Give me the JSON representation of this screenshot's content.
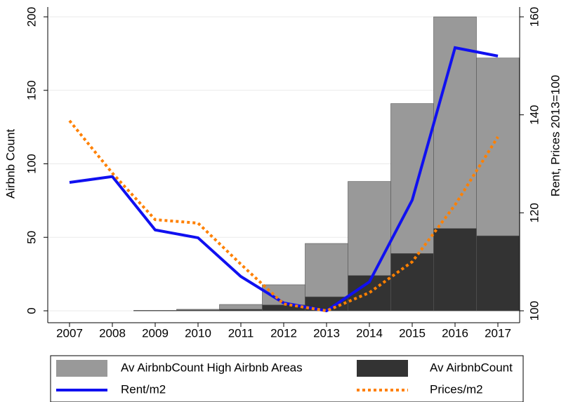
{
  "chart_data": {
    "type": "combo",
    "categories": [
      "2007",
      "2008",
      "2009",
      "2010",
      "2011",
      "2012",
      "2013",
      "2014",
      "2015",
      "2016",
      "2017"
    ],
    "ylabel": "Airbnb Count",
    "y2label": "Rent, Prices 2013=100",
    "ylim": [
      0,
      200
    ],
    "yticks": [
      0,
      50,
      100,
      150,
      200
    ],
    "y2lim": [
      100,
      160
    ],
    "y2ticks": [
      100,
      120,
      140,
      160
    ],
    "grid": true,
    "legend": "bottom",
    "series": [
      {
        "name": "Av AirbnbCount High Airbnb Areas",
        "kind": "bar",
        "color": "#999999",
        "values": [
          null,
          null,
          0.3,
          1,
          4.3,
          17.7,
          45.8,
          88,
          141,
          200,
          172
        ]
      },
      {
        "name": "Av AirbnbCount",
        "kind": "bar",
        "color": "#333333",
        "values": [
          null,
          null,
          0.2,
          0.5,
          1,
          4,
          9.5,
          24,
          39,
          56,
          51
        ]
      },
      {
        "name": "Rent/m2",
        "kind": "line",
        "axis": "y2",
        "color": "#1010f0",
        "dash": "solid",
        "values": [
          126.2,
          127.4,
          116.5,
          114.9,
          107,
          101.6,
          100,
          105.9,
          122.6,
          153.7,
          152
        ]
      },
      {
        "name": "Prices/m2",
        "kind": "line",
        "axis": "y2",
        "color": "#ff8000",
        "dash": "dotted",
        "values": [
          138.8,
          128.1,
          118.6,
          117.9,
          109.5,
          101.4,
          100,
          103.7,
          110,
          121.6,
          135.5
        ]
      }
    ]
  }
}
